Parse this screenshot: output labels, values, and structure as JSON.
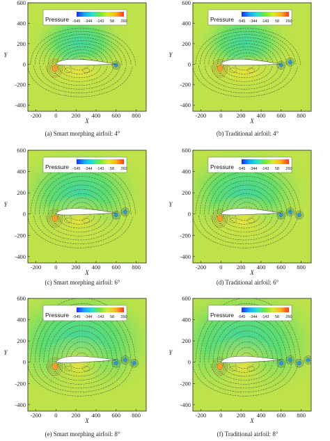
{
  "colorbar": {
    "title": "Pressure",
    "ticks": [
      "-545",
      "-344",
      "-143",
      "58",
      "260"
    ],
    "stops": [
      "#1a2aff",
      "#17a8ff",
      "#2ce0c8",
      "#78e83a",
      "#d8ec2a",
      "#ffb21a",
      "#ff3a1a"
    ]
  },
  "axes": {
    "xlabel": "X",
    "ylabel": "Y",
    "xticks": [
      "-200",
      "0",
      "200",
      "400",
      "600",
      "800"
    ],
    "yticks": [
      "600",
      "400",
      "200",
      "0",
      "-200",
      "-400"
    ]
  },
  "background_color": "#bde24a",
  "panels": [
    {
      "caption": "(a) Smart morphing airfoil: 4°",
      "type": "smart",
      "aoa": 4
    },
    {
      "caption": "(b) Traditional airfoil: 4°",
      "type": "traditional",
      "aoa": 4
    },
    {
      "caption": "(c) Smart morphing airfoil: 6°",
      "type": "smart",
      "aoa": 6
    },
    {
      "caption": "(d) Traditional airfoil: 6°",
      "type": "traditional",
      "aoa": 6
    },
    {
      "caption": "(e) Smart morphing airfoil: 8°",
      "type": "smart",
      "aoa": 8
    },
    {
      "caption": "(f) Traditional airfoil: 8°",
      "type": "traditional",
      "aoa": 8
    }
  ]
}
